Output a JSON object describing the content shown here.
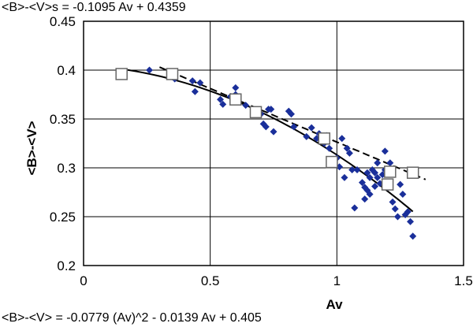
{
  "chart_data": {
    "type": "scatter",
    "xlabel": "Av",
    "ylabel": "<B>-<V>",
    "xlim": [
      0,
      1.5
    ],
    "ylim": [
      0.2,
      0.45
    ],
    "x_ticks": [
      "0",
      "0.5",
      "1",
      "1.5"
    ],
    "y_ticks": [
      "0.2",
      "0.25",
      "0.3",
      "0.35",
      "0.4",
      "0.45"
    ],
    "grid": true,
    "annotations": [
      "<B>-<V>s = -0.1095 Av + 0.4359",
      "<B>-<V> = -0.0779 (Av)^2 - 0.0139 Av + 0.405"
    ],
    "series": [
      {
        "marker": "diamond",
        "color": "#1a2f9a",
        "points": [
          [
            0.26,
            0.4
          ],
          [
            0.36,
            0.391
          ],
          [
            0.43,
            0.389
          ],
          [
            0.44,
            0.378
          ],
          [
            0.46,
            0.387
          ],
          [
            0.54,
            0.37
          ],
          [
            0.55,
            0.365
          ],
          [
            0.58,
            0.373
          ],
          [
            0.6,
            0.375
          ],
          [
            0.6,
            0.382
          ],
          [
            0.64,
            0.364
          ],
          [
            0.7,
            0.355
          ],
          [
            0.71,
            0.345
          ],
          [
            0.72,
            0.342
          ],
          [
            0.73,
            0.36
          ],
          [
            0.74,
            0.36
          ],
          [
            0.75,
            0.337
          ],
          [
            0.81,
            0.358
          ],
          [
            0.82,
            0.355
          ],
          [
            0.83,
            0.342
          ],
          [
            0.88,
            0.332
          ],
          [
            0.9,
            0.341
          ],
          [
            0.92,
            0.33
          ],
          [
            0.93,
            0.335
          ],
          [
            0.95,
            0.325
          ],
          [
            0.96,
            0.333
          ],
          [
            0.97,
            0.32
          ],
          [
            1.0,
            0.31
          ],
          [
            1.01,
            0.301
          ],
          [
            1.02,
            0.33
          ],
          [
            1.03,
            0.29
          ],
          [
            1.04,
            0.32
          ],
          [
            1.05,
            0.315
          ],
          [
            1.06,
            0.298
          ],
          [
            1.07,
            0.259
          ],
          [
            1.08,
            0.298
          ],
          [
            1.1,
            0.285
          ],
          [
            1.11,
            0.268
          ],
          [
            1.11,
            0.28
          ],
          [
            1.12,
            0.277
          ],
          [
            1.12,
            0.295
          ],
          [
            1.13,
            0.273
          ],
          [
            1.13,
            0.29
          ],
          [
            1.14,
            0.298
          ],
          [
            1.15,
            0.281
          ],
          [
            1.15,
            0.295
          ],
          [
            1.16,
            0.29
          ],
          [
            1.16,
            0.305
          ],
          [
            1.17,
            0.284
          ],
          [
            1.18,
            0.293
          ],
          [
            1.19,
            0.298
          ],
          [
            1.19,
            0.317
          ],
          [
            1.2,
            0.28
          ],
          [
            1.21,
            0.305
          ],
          [
            1.22,
            0.265
          ],
          [
            1.23,
            0.258
          ],
          [
            1.24,
            0.25
          ],
          [
            1.25,
            0.283
          ],
          [
            1.26,
            0.273
          ],
          [
            1.27,
            0.252
          ],
          [
            1.28,
            0.255
          ],
          [
            1.29,
            0.245
          ],
          [
            1.3,
            0.23
          ]
        ]
      },
      {
        "marker": "open-square",
        "color": "#666666",
        "points": [
          [
            0.15,
            0.396
          ],
          [
            0.35,
            0.396
          ],
          [
            0.6,
            0.37
          ],
          [
            0.68,
            0.357
          ],
          [
            0.95,
            0.33
          ],
          [
            0.98,
            0.306
          ],
          [
            1.2,
            0.283
          ],
          [
            1.21,
            0.296
          ],
          [
            1.3,
            0.295
          ]
        ]
      }
    ],
    "fits": [
      {
        "style": "solid",
        "form": "quadratic",
        "coefficients": [
          -0.0779,
          -0.0139,
          0.405
        ],
        "x_range": [
          0.15,
          1.3
        ]
      },
      {
        "style": "dashed",
        "form": "linear",
        "coefficients": [
          -0.1095,
          0.4359
        ],
        "x_range": [
          0.3,
          1.35
        ]
      }
    ]
  }
}
